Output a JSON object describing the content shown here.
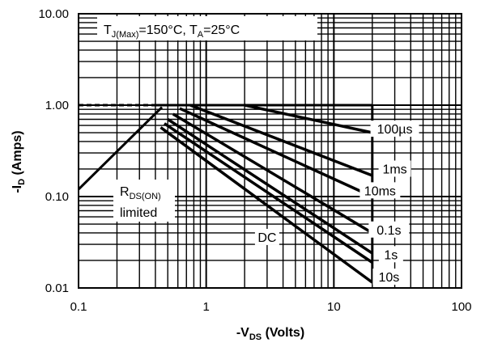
{
  "chart_data": {
    "type": "line",
    "title": "",
    "xlabel_main": "-V",
    "xlabel_sub": "DS",
    "xlabel_rest": " (Volts)",
    "ylabel_main": "-I",
    "ylabel_sub": "D",
    "ylabel_rest": " (Amps)",
    "x_scale": "log",
    "y_scale": "log",
    "xlim": [
      0.1,
      100
    ],
    "ylim": [
      0.01,
      10
    ],
    "grid": true,
    "x_ticks": [
      "0.1",
      "1",
      "10",
      "100"
    ],
    "y_ticks": [
      "10.00",
      "1.00",
      "0.10",
      "0.01"
    ],
    "annotation_conditions": {
      "t_main": "T",
      "t_sub": "J(Max)",
      "t_rest": "=150°C, T",
      "a_sub": "A",
      "a_rest": "=25°C"
    },
    "annotation_rds": {
      "main": "R",
      "sub": "DS(ON)",
      "line2": "limited"
    },
    "rds_limit": {
      "name": "RDS(ON) limited",
      "x": [
        0.1,
        0.45
      ],
      "y": [
        0.12,
        0.95
      ]
    },
    "current_limit": {
      "dashed_x": [
        0.1,
        0.4
      ],
      "solid_x": [
        0.4,
        20
      ],
      "y": 1.0
    },
    "series": [
      {
        "name": "100µs",
        "x": [
          2.0,
          20
        ],
        "y": [
          1.0,
          0.5
        ]
      },
      {
        "name": "1ms",
        "x": [
          0.75,
          20
        ],
        "y": [
          1.0,
          0.17
        ]
      },
      {
        "name": "10ms",
        "x": [
          0.62,
          20
        ],
        "y": [
          0.92,
          0.1
        ]
      },
      {
        "name": "0.1s",
        "x": [
          0.55,
          20
        ],
        "y": [
          0.8,
          0.04
        ]
      },
      {
        "name": "1s",
        "x": [
          0.5,
          20
        ],
        "y": [
          0.7,
          0.024
        ]
      },
      {
        "name": "10s",
        "x": [
          0.47,
          20
        ],
        "y": [
          0.63,
          0.019
        ]
      },
      {
        "name": "DC",
        "x": [
          0.44,
          20
        ],
        "y": [
          0.57,
          0.0115
        ]
      }
    ],
    "series_label_positions": {
      "100µs": [
        30,
        0.52
      ],
      "1ms": [
        30,
        0.19
      ],
      "10ms": [
        23,
        0.11
      ],
      "0.1s": [
        27,
        0.041
      ],
      "1s": [
        28,
        0.022
      ],
      "10s": [
        27,
        0.0125
      ],
      "DC": [
        3.0,
        0.034
      ]
    }
  }
}
